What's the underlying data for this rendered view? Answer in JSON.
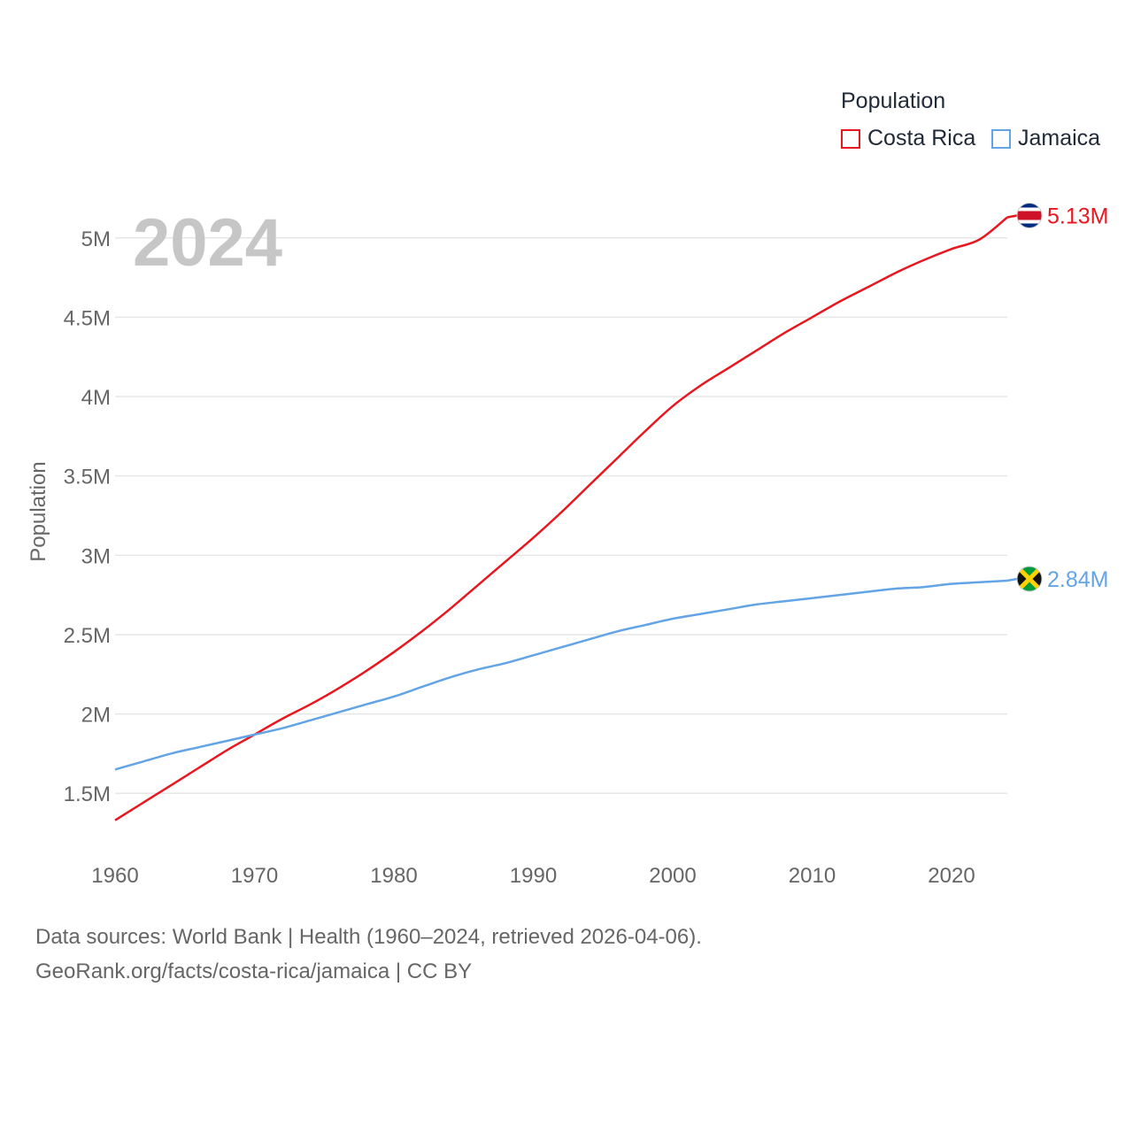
{
  "chart_data": {
    "type": "line",
    "year_label": "2024",
    "ylabel": "Population",
    "xlabel": "",
    "xlim": [
      1960,
      2024
    ],
    "ylim": [
      1200000,
      5300000
    ],
    "x_ticks": [
      {
        "value": 1960,
        "label": "1960"
      },
      {
        "value": 1970,
        "label": "1970"
      },
      {
        "value": 1980,
        "label": "1980"
      },
      {
        "value": 1990,
        "label": "1990"
      },
      {
        "value": 2000,
        "label": "2000"
      },
      {
        "value": 2010,
        "label": "2010"
      },
      {
        "value": 2020,
        "label": "2020"
      }
    ],
    "y_ticks": [
      {
        "value": 1500000,
        "label": "1.5M"
      },
      {
        "value": 2000000,
        "label": "2M"
      },
      {
        "value": 2500000,
        "label": "2.5M"
      },
      {
        "value": 3000000,
        "label": "3M"
      },
      {
        "value": 3500000,
        "label": "3.5M"
      },
      {
        "value": 4000000,
        "label": "4M"
      },
      {
        "value": 4500000,
        "label": "4.5M"
      },
      {
        "value": 5000000,
        "label": "5M"
      }
    ],
    "series": [
      {
        "name": "Costa Rica",
        "color": "#e8171f",
        "end_label": "5.13M",
        "flag_icon": "costa-rica-flag-icon",
        "x": [
          1960,
          1962,
          1964,
          1966,
          1968,
          1970,
          1972,
          1974,
          1976,
          1978,
          1980,
          1982,
          1984,
          1986,
          1988,
          1990,
          1992,
          1994,
          1996,
          1998,
          2000,
          2002,
          2004,
          2006,
          2008,
          2010,
          2012,
          2014,
          2016,
          2018,
          2020,
          2022,
          2024
        ],
        "values": [
          1330000,
          1440000,
          1550000,
          1660000,
          1770000,
          1870000,
          1970000,
          2060000,
          2160000,
          2270000,
          2390000,
          2520000,
          2660000,
          2810000,
          2960000,
          3110000,
          3270000,
          3440000,
          3610000,
          3780000,
          3940000,
          4070000,
          4180000,
          4290000,
          4400000,
          4500000,
          4600000,
          4690000,
          4780000,
          4860000,
          4930000,
          4990000,
          5130000
        ]
      },
      {
        "name": "Jamaica",
        "color": "#63a4e6",
        "end_label": "2.84M",
        "flag_icon": "jamaica-flag-icon",
        "x": [
          1960,
          1962,
          1964,
          1966,
          1968,
          1970,
          1972,
          1974,
          1976,
          1978,
          1980,
          1982,
          1984,
          1986,
          1988,
          1990,
          1992,
          1994,
          1996,
          1998,
          2000,
          2002,
          2004,
          2006,
          2008,
          2010,
          2012,
          2014,
          2016,
          2018,
          2020,
          2022,
          2024
        ],
        "values": [
          1650000,
          1700000,
          1750000,
          1790000,
          1830000,
          1870000,
          1910000,
          1960000,
          2010000,
          2060000,
          2110000,
          2170000,
          2230000,
          2280000,
          2320000,
          2370000,
          2420000,
          2470000,
          2520000,
          2560000,
          2600000,
          2630000,
          2660000,
          2690000,
          2710000,
          2730000,
          2750000,
          2770000,
          2790000,
          2800000,
          2820000,
          2830000,
          2840000
        ]
      }
    ]
  },
  "legend": {
    "title": "Population",
    "items": [
      {
        "label": "Costa Rica",
        "color": "#e8171f"
      },
      {
        "label": "Jamaica",
        "color": "#63a4e6"
      }
    ]
  },
  "source": {
    "line1": "Data sources: World Bank | Health (1960–2024, retrieved 2026-04-06).",
    "line2": "GeoRank.org/facts/costa-rica/jamaica | CC BY"
  }
}
